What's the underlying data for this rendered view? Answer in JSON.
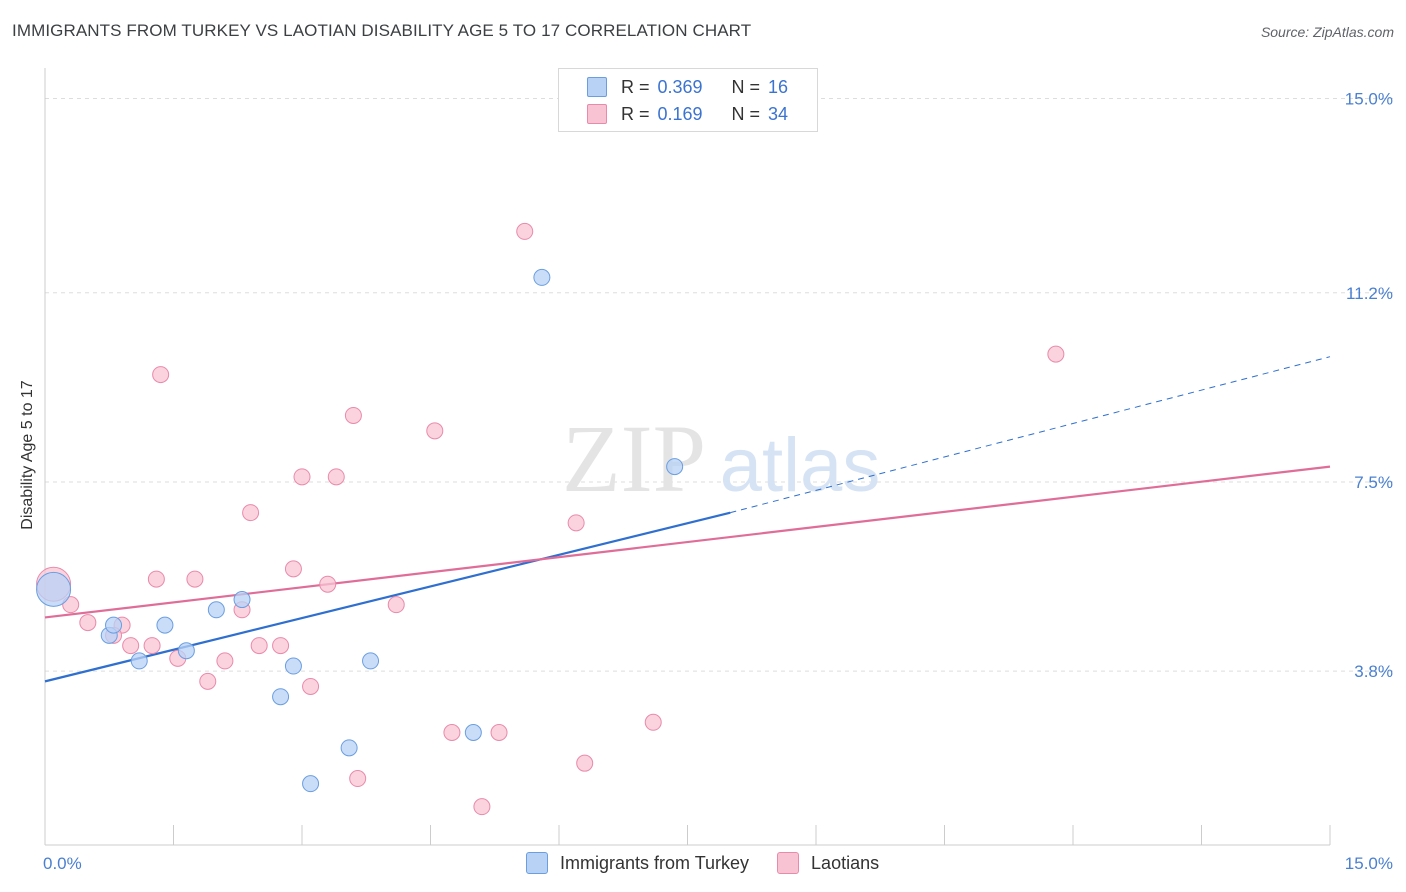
{
  "title": "IMMIGRANTS FROM TURKEY VS LAOTIAN DISABILITY AGE 5 TO 17 CORRELATION CHART",
  "source": "Source: ZipAtlas.com",
  "watermark": {
    "zip": "ZIP",
    "atlas": "atlas"
  },
  "colors": {
    "blue_fill": "#b8d2f5",
    "blue_stroke": "#6a9ee0",
    "blue_line": "#2f6fcf",
    "pink_fill": "#f8c4d4",
    "pink_stroke": "#e98aaa",
    "pink_line": "#e06d97",
    "tick_text": "#4a80d0"
  },
  "legend_top": {
    "rows": [
      {
        "r_label": "R =",
        "r_value": "0.369",
        "n_label": "N =",
        "n_value": "16"
      },
      {
        "r_label": "R =",
        "r_value": "0.169",
        "n_label": "N =",
        "n_value": "34"
      }
    ]
  },
  "legend_bottom": [
    {
      "label": "Immigrants from Turkey"
    },
    {
      "label": "Laotians"
    }
  ],
  "chart_data": {
    "type": "scatter",
    "ylabel": "Disability Age 5 to 17",
    "xlim": [
      0,
      15
    ],
    "ylim": [
      0.4,
      15.4
    ],
    "x_tick_labels": [
      "0.0%",
      "15.0%"
    ],
    "y_ticks": [
      3.8,
      7.5,
      11.2,
      15.0
    ],
    "y_tick_labels": [
      "3.8%",
      "7.5%",
      "11.2%",
      "15.0%"
    ],
    "grid": true,
    "legend": "top-center",
    "series": [
      {
        "name": "Immigrants from Turkey",
        "points": [
          {
            "x": 0.1,
            "y": 5.4,
            "big": true
          },
          {
            "x": 0.75,
            "y": 4.5
          },
          {
            "x": 0.8,
            "y": 4.7
          },
          {
            "x": 1.1,
            "y": 4.0
          },
          {
            "x": 1.4,
            "y": 4.7
          },
          {
            "x": 1.65,
            "y": 4.2
          },
          {
            "x": 2.0,
            "y": 5.0
          },
          {
            "x": 2.3,
            "y": 5.2
          },
          {
            "x": 2.75,
            "y": 3.3
          },
          {
            "x": 2.9,
            "y": 3.9
          },
          {
            "x": 3.1,
            "y": 1.6
          },
          {
            "x": 3.55,
            "y": 2.3
          },
          {
            "x": 3.8,
            "y": 4.0
          },
          {
            "x": 5.0,
            "y": 2.6
          },
          {
            "x": 5.8,
            "y": 11.5
          },
          {
            "x": 7.35,
            "y": 7.8
          }
        ],
        "trend": {
          "x0": 0,
          "y0": 3.6,
          "x1": 8.0,
          "y1": 6.9,
          "x_dash_end": 15.0,
          "y_dash_end": 9.95
        }
      },
      {
        "name": "Laotians",
        "points": [
          {
            "x": 0.1,
            "y": 5.5,
            "big": true
          },
          {
            "x": 0.3,
            "y": 5.1
          },
          {
            "x": 0.5,
            "y": 4.75
          },
          {
            "x": 0.9,
            "y": 4.7
          },
          {
            "x": 0.8,
            "y": 4.5
          },
          {
            "x": 1.0,
            "y": 4.3
          },
          {
            "x": 1.25,
            "y": 4.3
          },
          {
            "x": 1.3,
            "y": 5.6
          },
          {
            "x": 1.35,
            "y": 9.6
          },
          {
            "x": 1.55,
            "y": 4.05
          },
          {
            "x": 1.75,
            "y": 5.6
          },
          {
            "x": 1.9,
            "y": 3.6
          },
          {
            "x": 2.1,
            "y": 4.0
          },
          {
            "x": 2.3,
            "y": 5.0
          },
          {
            "x": 2.4,
            "y": 6.9
          },
          {
            "x": 2.5,
            "y": 4.3
          },
          {
            "x": 2.75,
            "y": 4.3
          },
          {
            "x": 2.9,
            "y": 5.8
          },
          {
            "x": 3.0,
            "y": 7.6
          },
          {
            "x": 3.1,
            "y": 3.5
          },
          {
            "x": 3.3,
            "y": 5.5
          },
          {
            "x": 3.4,
            "y": 7.6
          },
          {
            "x": 3.6,
            "y": 8.8
          },
          {
            "x": 3.65,
            "y": 1.7
          },
          {
            "x": 4.1,
            "y": 5.1
          },
          {
            "x": 4.55,
            "y": 8.5
          },
          {
            "x": 4.75,
            "y": 2.6
          },
          {
            "x": 5.1,
            "y": 1.15
          },
          {
            "x": 5.3,
            "y": 2.6
          },
          {
            "x": 5.6,
            "y": 12.4
          },
          {
            "x": 6.2,
            "y": 6.7
          },
          {
            "x": 6.3,
            "y": 2.0
          },
          {
            "x": 7.1,
            "y": 2.8
          },
          {
            "x": 11.8,
            "y": 10.0
          }
        ],
        "trend": {
          "x0": 0,
          "y0": 4.85,
          "x1": 15.0,
          "y1": 7.8
        }
      }
    ]
  }
}
